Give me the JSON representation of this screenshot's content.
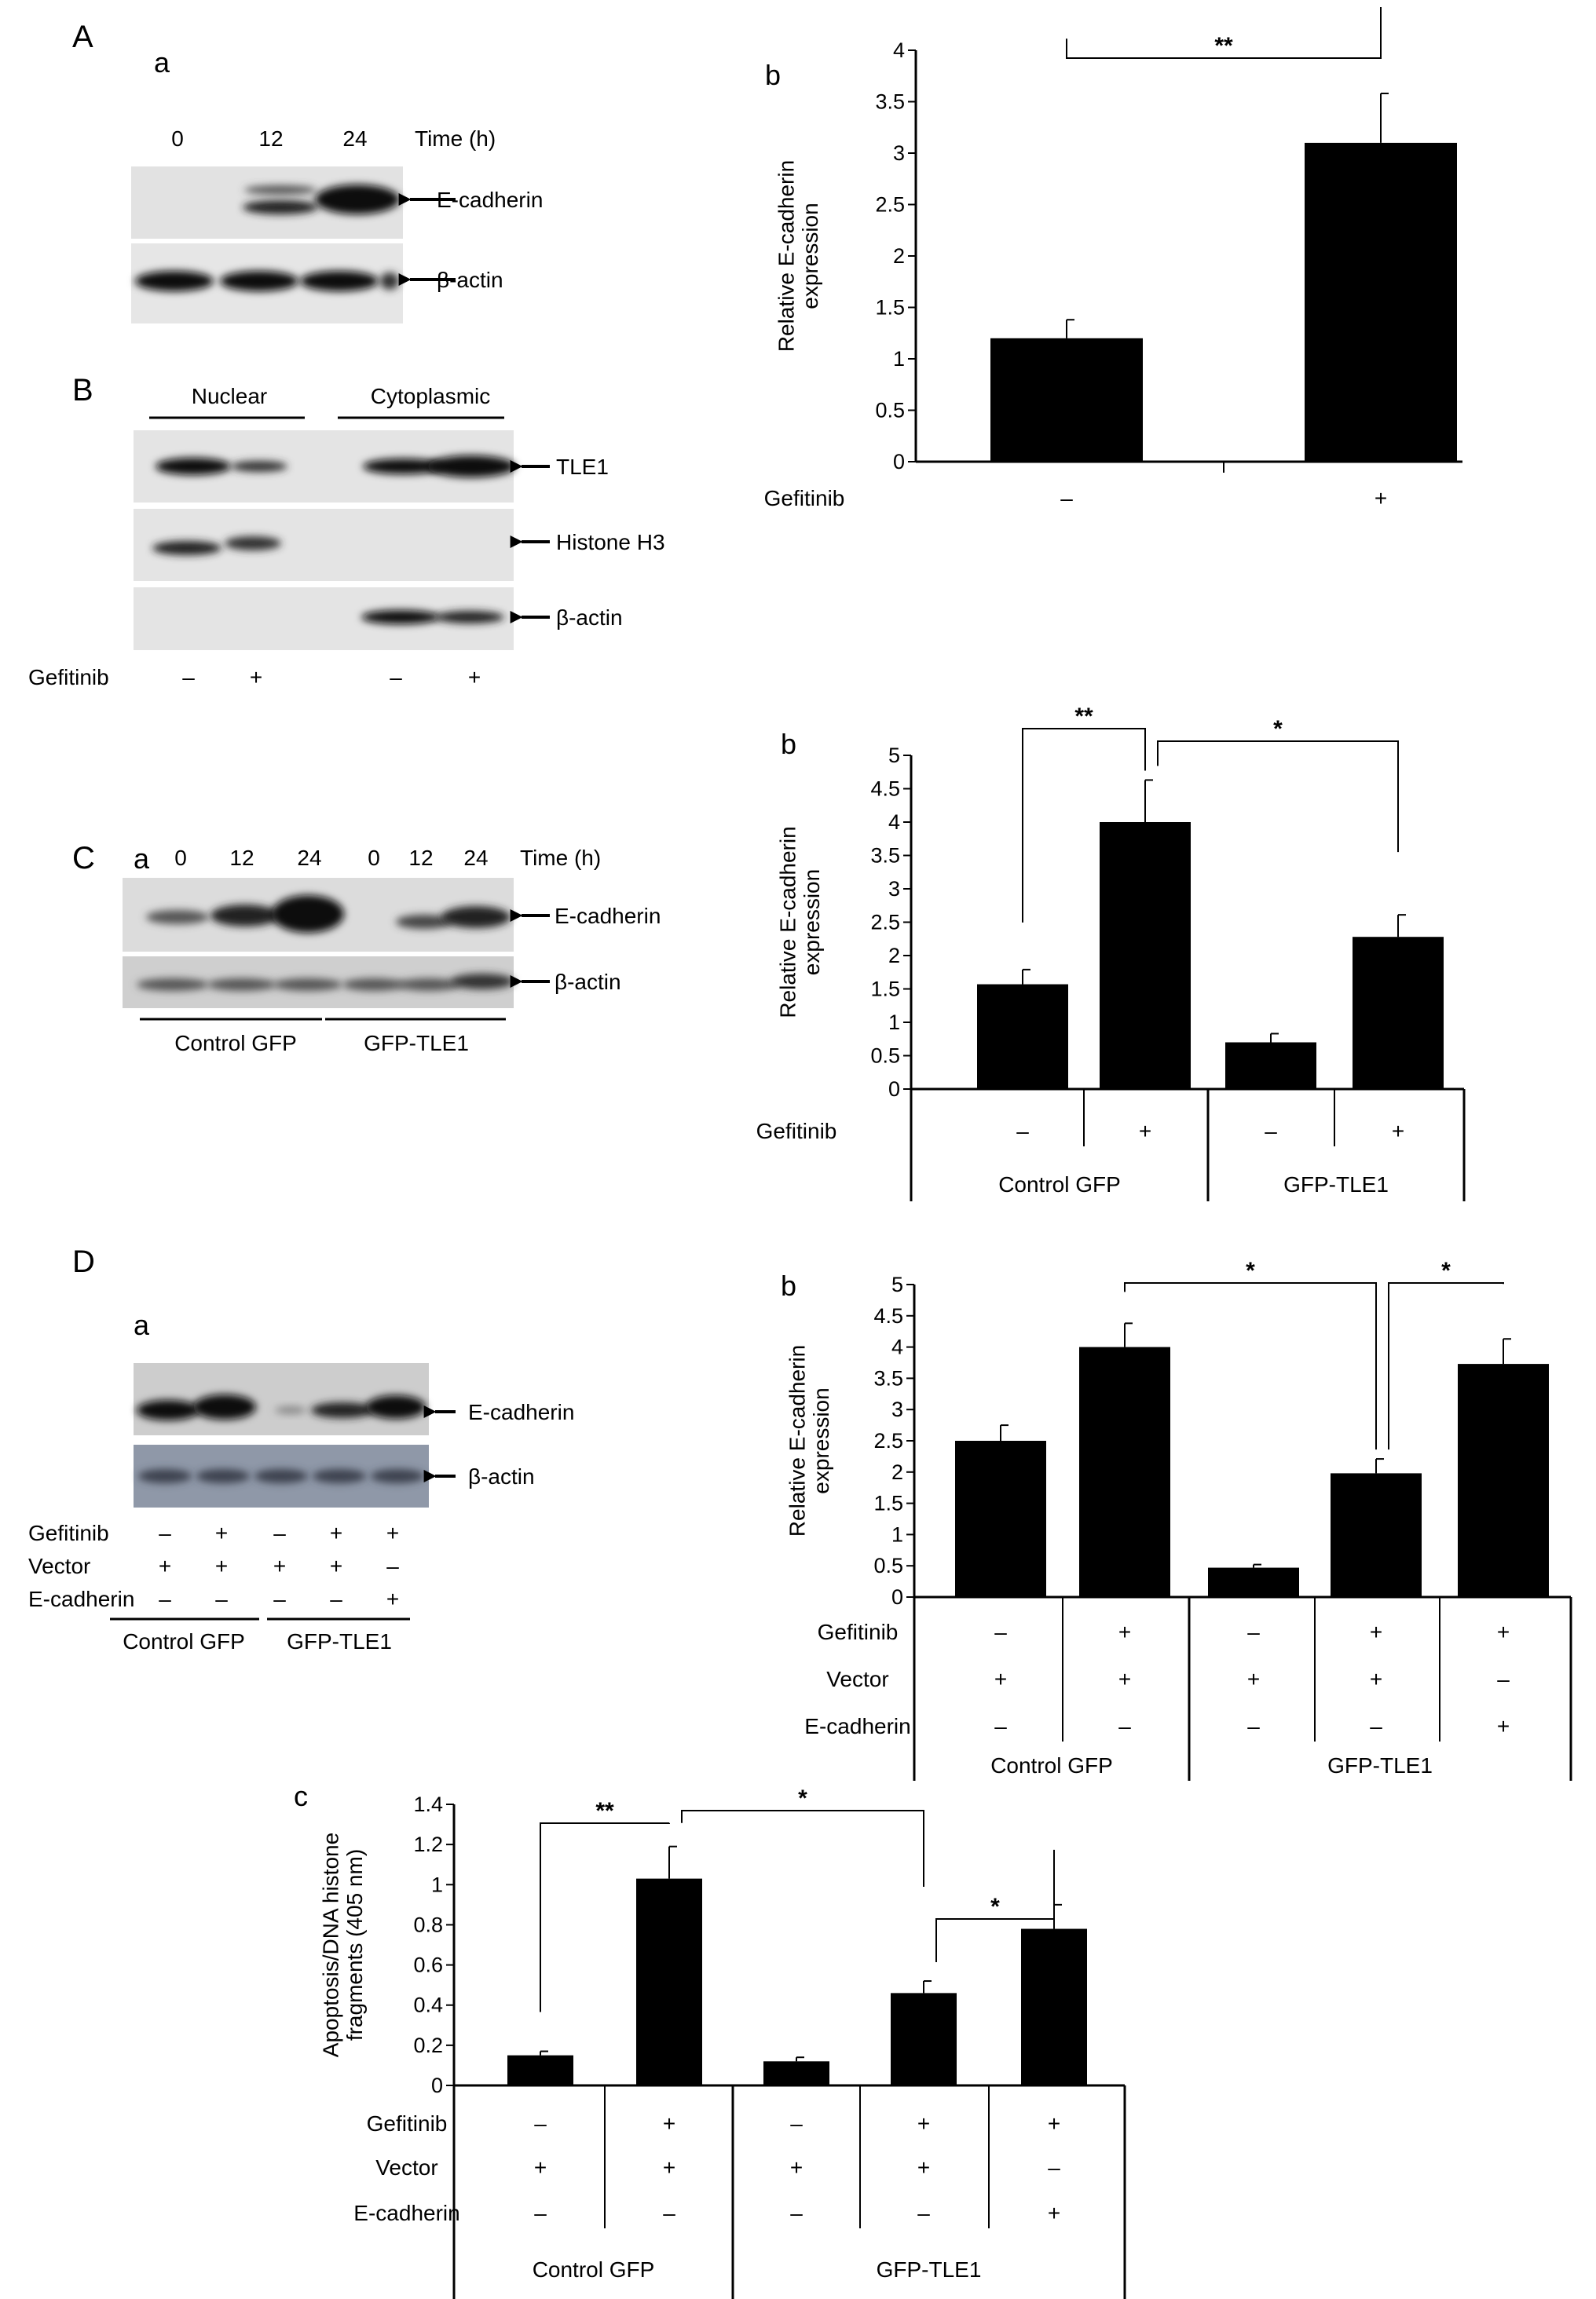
{
  "panels": {
    "A": "A",
    "B": "B",
    "C": "C",
    "D": "D",
    "Aa": "a",
    "Ab": "b",
    "Ca": "a",
    "Cb": "b",
    "Da": "a",
    "Db": "b",
    "Dc": "c"
  },
  "blots": {
    "A": {
      "lanes": [
        "0",
        "12",
        "24"
      ],
      "time_label": "Time (h)",
      "bands": [
        "E-cadherin",
        "β-actin"
      ]
    },
    "B": {
      "groups": [
        "Nuclear",
        "Cytoplasmic"
      ],
      "bands": [
        "TLE1",
        "Histone H3",
        "β-actin"
      ],
      "treatment_label": "Gefitinib",
      "treatment": [
        "–",
        "+",
        "–",
        "+"
      ]
    },
    "C": {
      "lanes": [
        "0",
        "12",
        "24",
        "0",
        "12",
        "24"
      ],
      "time_label": "Time (h)",
      "bands": [
        "E-cadherin",
        "β-actin"
      ],
      "groups": [
        "Control  GFP",
        "GFP-TLE1"
      ]
    },
    "D": {
      "bands": [
        "E-cadherin",
        "β-actin"
      ],
      "row_labels": [
        "Gefitinib",
        "Vector",
        "E-cadherin"
      ],
      "rows": [
        [
          "–",
          "+",
          "–",
          "+",
          "+"
        ],
        [
          "+",
          "+",
          "+",
          "+",
          "–"
        ],
        [
          "–",
          "–",
          "–",
          "–",
          "+"
        ]
      ],
      "groups": [
        "Control GFP",
        "GFP-TLE1"
      ]
    }
  },
  "chart_data": [
    {
      "id": "Ab",
      "type": "bar",
      "ylabel": "Relative E-cadherin expression",
      "ylim": [
        0,
        4
      ],
      "yticks": [
        "0",
        "0.5",
        "1",
        "1.5",
        "2",
        "2.5",
        "3",
        "3.5",
        "4"
      ],
      "values": [
        1.2,
        3.1
      ],
      "errors": [
        0.18,
        0.48
      ],
      "row_labels": [
        "Gefitinib"
      ],
      "rows": [
        [
          "–",
          "+"
        ]
      ],
      "groups": [],
      "significance": [
        {
          "from": 0,
          "to": 1,
          "label": "**"
        }
      ]
    },
    {
      "id": "Cb",
      "type": "bar",
      "ylabel": "Relative E-cadherin expression",
      "ylim": [
        0,
        5
      ],
      "yticks": [
        "0",
        "0.5",
        "1",
        "1.5",
        "2",
        "2.5",
        "3",
        "3.5",
        "4",
        "4.5",
        "5"
      ],
      "values": [
        1.57,
        4.0,
        0.7,
        2.28
      ],
      "errors": [
        0.22,
        0.63,
        0.13,
        0.33
      ],
      "row_labels": [
        "Gefitinib"
      ],
      "rows": [
        [
          "–",
          "+",
          "–",
          "+"
        ]
      ],
      "groups": [
        {
          "label": "Control GFP",
          "span": 2
        },
        {
          "label": "GFP-TLE1",
          "span": 2
        }
      ],
      "significance": [
        {
          "from": 0,
          "to": 1,
          "label": "**"
        },
        {
          "from": 1,
          "to": 3,
          "label": "*"
        }
      ]
    },
    {
      "id": "Db",
      "type": "bar",
      "ylabel": "Relative E-cadherin expression",
      "ylim": [
        0,
        5
      ],
      "yticks": [
        "0",
        "0.5",
        "1",
        "1.5",
        "2",
        "2.5",
        "3",
        "3.5",
        "4",
        "4.5",
        "5"
      ],
      "values": [
        2.5,
        4.0,
        0.47,
        1.98,
        3.73
      ],
      "errors": [
        0.25,
        0.38,
        0.05,
        0.23,
        0.4
      ],
      "row_labels": [
        "Gefitinib",
        "Vector",
        "E-cadherin"
      ],
      "rows": [
        [
          "–",
          "+",
          "–",
          "+",
          "+"
        ],
        [
          "+",
          "+",
          "+",
          "+",
          "–"
        ],
        [
          "–",
          "–",
          "–",
          "–",
          "+"
        ]
      ],
      "groups": [
        {
          "label": "Control GFP",
          "span": 2
        },
        {
          "label": "GFP-TLE1",
          "span": 3
        }
      ],
      "significance": [
        {
          "from": 1,
          "to": 3,
          "label": "*"
        },
        {
          "from": 3,
          "to": 4,
          "label": "*"
        }
      ]
    },
    {
      "id": "Dc",
      "type": "bar",
      "ylabel": "Apoptosis/DNA histone fragments (405 nm)",
      "ylim": [
        0,
        1.4
      ],
      "yticks": [
        "0",
        "0.2",
        "0.4",
        "0.6",
        "0.8",
        "1",
        "1.2",
        "1.4"
      ],
      "values": [
        0.15,
        1.03,
        0.12,
        0.46,
        0.78
      ],
      "errors": [
        0.02,
        0.16,
        0.02,
        0.06,
        0.12
      ],
      "row_labels": [
        "Gefitinib",
        "Vector",
        "E-cadherin"
      ],
      "rows": [
        [
          "–",
          "+",
          "–",
          "+",
          "+"
        ],
        [
          "+",
          "+",
          "+",
          "+",
          "–"
        ],
        [
          "–",
          "–",
          "–",
          "–",
          "+"
        ]
      ],
      "groups": [
        {
          "label": "Control GFP",
          "span": 2
        },
        {
          "label": "GFP-TLE1",
          "span": 3
        }
      ],
      "significance": [
        {
          "from": 0,
          "to": 1,
          "label": "**"
        },
        {
          "from": 1,
          "to": 3,
          "label": "*"
        },
        {
          "from": 3,
          "to": 4,
          "label": "*"
        }
      ]
    }
  ]
}
